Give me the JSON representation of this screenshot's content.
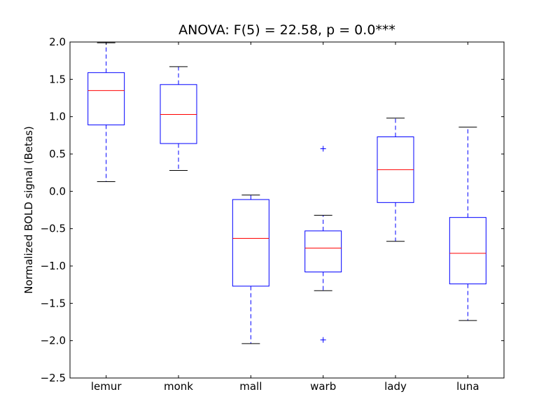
{
  "chart_data": {
    "type": "box",
    "title": "ANOVA: F(5) = 22.58, p = 0.0***",
    "xlabel": "",
    "ylabel": "Normalized BOLD signal (Betas)",
    "ylim": [
      -2.5,
      2.0
    ],
    "yticks": [
      "2.0",
      "1.5",
      "1.0",
      "0.5",
      "0.0",
      "−0.5",
      "−1.0",
      "−1.5",
      "−2.0",
      "−2.5"
    ],
    "ytick_values": [
      2.0,
      1.5,
      1.0,
      0.5,
      0.0,
      -0.5,
      -1.0,
      -1.5,
      -2.0,
      -2.5
    ],
    "categories": [
      "lemur",
      "monk",
      "mall",
      "warb",
      "lady",
      "luna"
    ],
    "grid": false,
    "legend": null,
    "colors": {
      "box": "#0000ff",
      "median": "#ff0000",
      "cap": "#000000",
      "outlier": "#0000ff"
    },
    "boxes": [
      {
        "label": "lemur",
        "whisker_low": 0.13,
        "q1": 0.89,
        "median": 1.35,
        "q3": 1.59,
        "whisker_high": 1.99,
        "outliers": []
      },
      {
        "label": "monk",
        "whisker_low": 0.28,
        "q1": 0.64,
        "median": 1.03,
        "q3": 1.43,
        "whisker_high": 1.67,
        "outliers": []
      },
      {
        "label": "mall",
        "whisker_low": -2.04,
        "q1": -1.27,
        "median": -0.63,
        "q3": -0.11,
        "whisker_high": -0.05,
        "outliers": []
      },
      {
        "label": "warb",
        "whisker_low": -1.33,
        "q1": -1.08,
        "median": -0.76,
        "q3": -0.53,
        "whisker_high": -0.32,
        "outliers": [
          0.57,
          -1.99
        ]
      },
      {
        "label": "lady",
        "whisker_low": -0.67,
        "q1": -0.15,
        "median": 0.29,
        "q3": 0.73,
        "whisker_high": 0.98,
        "outliers": []
      },
      {
        "label": "luna",
        "whisker_low": -1.73,
        "q1": -1.24,
        "median": -0.83,
        "q3": -0.35,
        "whisker_high": 0.86,
        "outliers": []
      }
    ]
  }
}
